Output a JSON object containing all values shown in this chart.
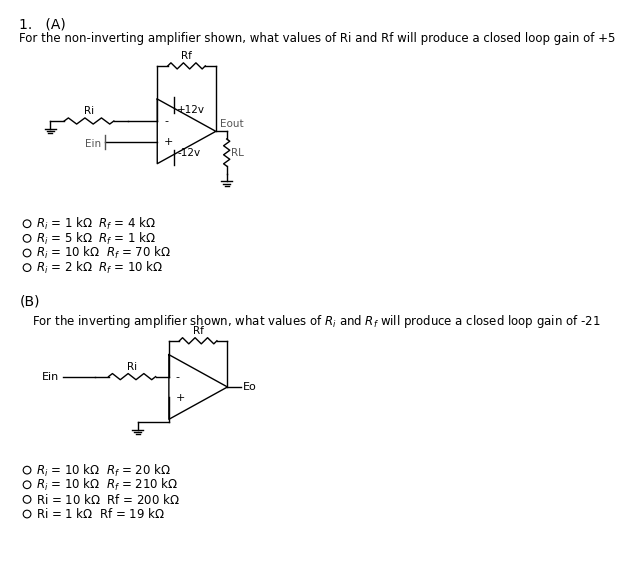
{
  "background_color": "#ffffff",
  "text_color": "#000000",
  "gray_color": "#555555",
  "title": "1.   (A)",
  "part_a_question": "For the non-inverting amplifier shown, what values of Ri and Rf will produce a closed loop gain of +5",
  "part_a_options": [
    "R_i = 1 k\\u03a9  R_f = 4 k\\u03a9",
    "R_i = 5 k\\u03a9  R_f = 1 k\\u03a9",
    "R_i = 10 k\\u03a9  R_f = 70 k\\u03a9",
    "R_i = 2 k\\u03a9  R_f = 10 k\\u03a9"
  ],
  "part_b_label": "(B)",
  "part_b_question": "For the inverting amplifier shown, what values of R_i and R_f will produce a closed loop gain of -21",
  "part_b_options": [
    "R_i = 10 k\\u03a9  R_f = 20 k\\u03a9",
    "R_i = 10 k\\u03a9  R_f = 210 k\\u03a9",
    "Ri = 10 k\\u03a9  Rf = 200 k\\u03a9",
    "Ri = 1 k\\u03a9  Rf = 19 k\\u03a9"
  ],
  "font_size_title": 10,
  "font_size_question": 8.5,
  "font_size_option": 8.5,
  "font_size_circuit": 7.5,
  "font_size_label": 8
}
